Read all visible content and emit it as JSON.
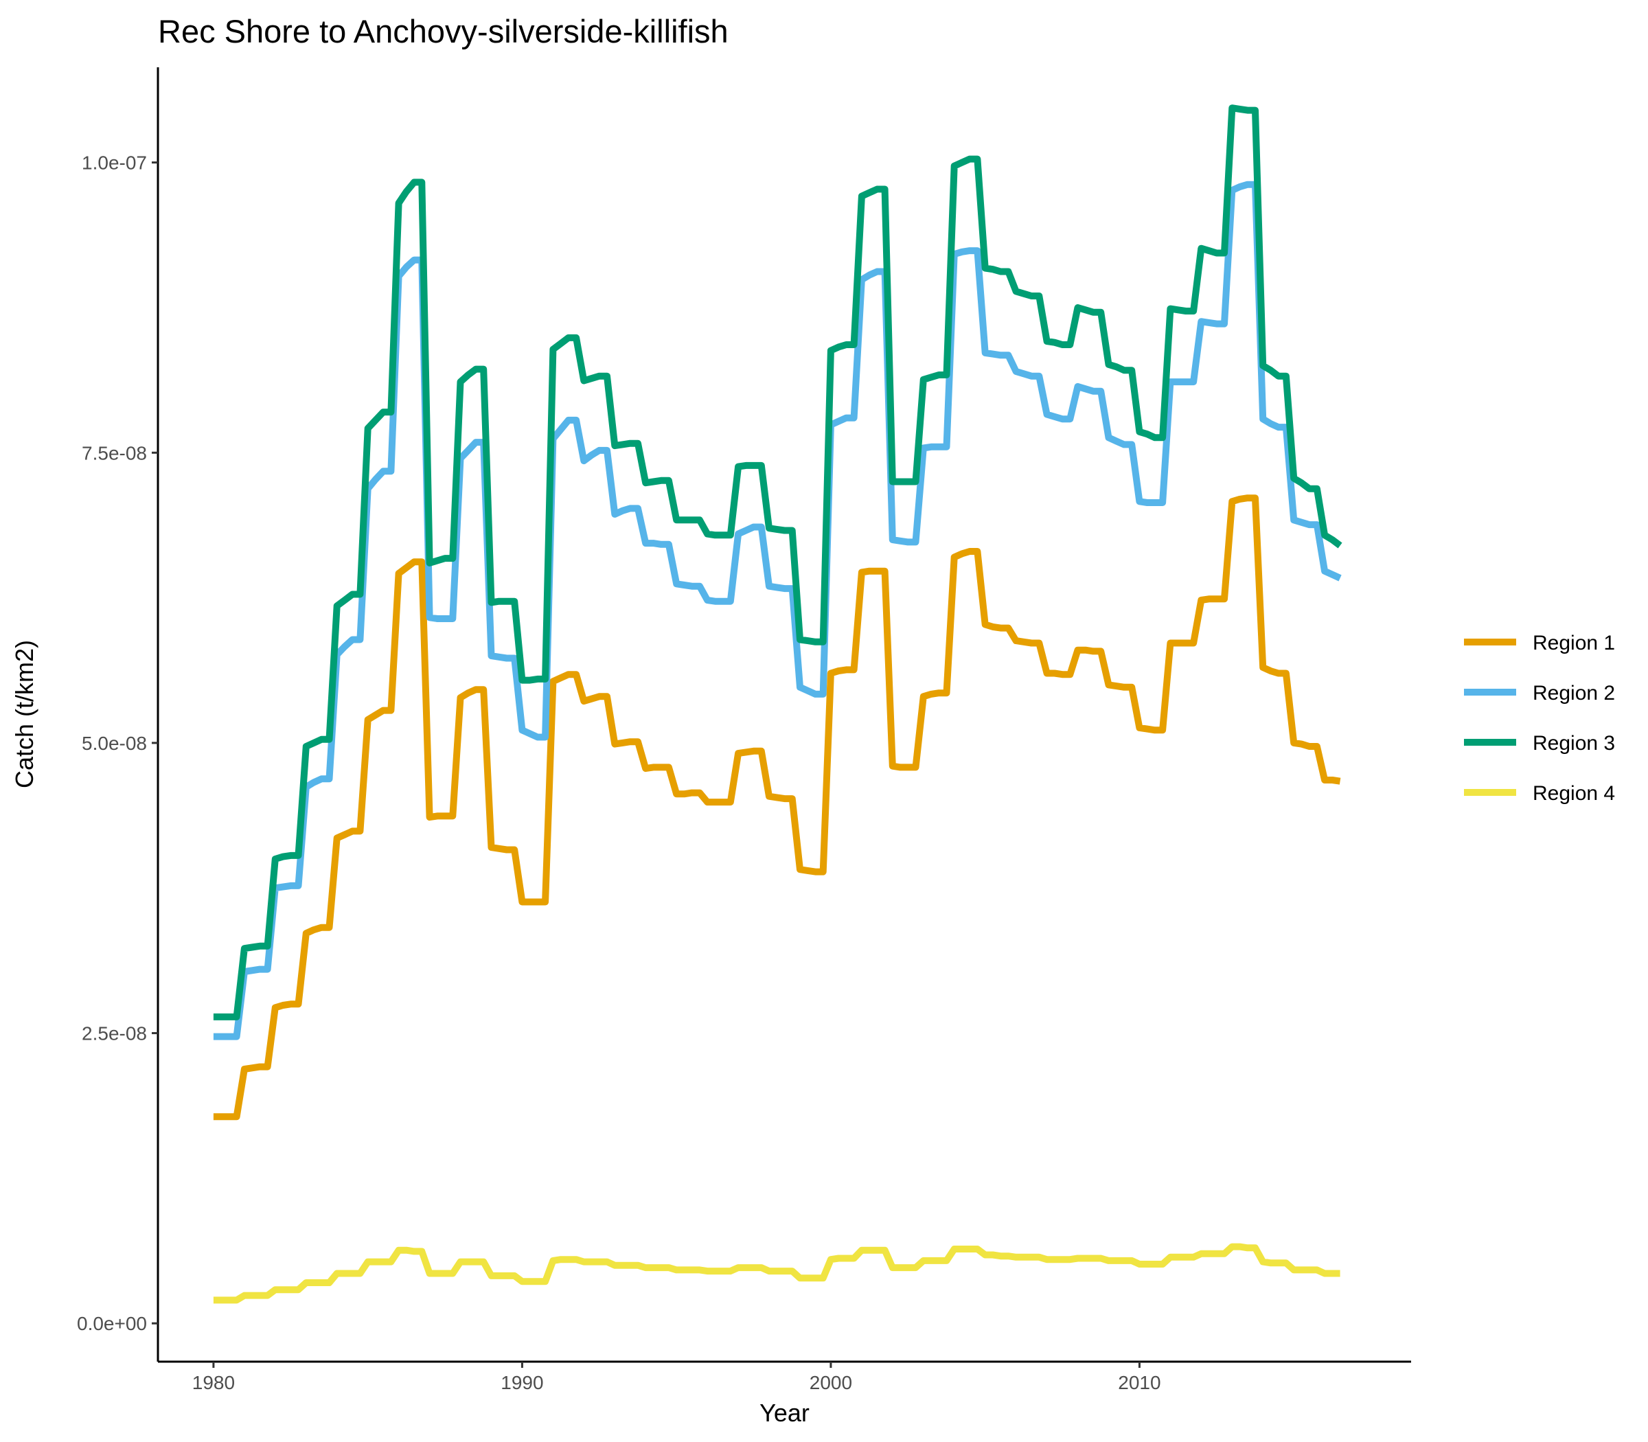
{
  "chart_data": {
    "type": "line",
    "title": "Rec Shore to Anchovy-silverside-killifish",
    "xlabel": "Year",
    "ylabel": "Catch (t/km2)",
    "xlim": [
      1978.2,
      2018.8
    ],
    "ylim": [
      -3.3e-09,
      1.082e-07
    ],
    "x_ticks": [
      1980,
      1990,
      2000,
      2010
    ],
    "x_tick_labels": [
      "1980",
      "1990",
      "2000",
      "2010"
    ],
    "y_ticks": [
      0,
      2.5e-08,
      5e-08,
      7.5e-08,
      1e-07
    ],
    "y_tick_labels": [
      "0.0e+00",
      "2.5e-08",
      "5.0e-08",
      "7.5e-08",
      "1.0e-07"
    ],
    "grid": false,
    "legend_position": "right",
    "steps_per_year": 4,
    "x_start": 1980,
    "x_step": 0.25,
    "series": [
      {
        "name": "Region 1",
        "color": "#E69F00",
        "values": [
          1.78e-08,
          1.78e-08,
          1.78e-08,
          1.78e-08,
          2.19e-08,
          2.2e-08,
          2.21e-08,
          2.21e-08,
          2.72e-08,
          2.74e-08,
          2.75e-08,
          2.75e-08,
          3.36e-08,
          3.39e-08,
          3.41e-08,
          3.41e-08,
          4.18e-08,
          4.21e-08,
          4.24e-08,
          4.24e-08,
          5.2e-08,
          5.24e-08,
          5.28e-08,
          5.28e-08,
          6.46e-08,
          6.51e-08,
          6.56e-08,
          6.56e-08,
          4.36e-08,
          4.37e-08,
          4.37e-08,
          4.37e-08,
          5.39e-08,
          5.43e-08,
          5.46e-08,
          5.46e-08,
          4.1e-08,
          4.09e-08,
          4.08e-08,
          4.08e-08,
          3.63e-08,
          3.63e-08,
          3.63e-08,
          3.63e-08,
          5.53e-08,
          5.56e-08,
          5.59e-08,
          5.59e-08,
          5.36e-08,
          5.38e-08,
          5.4e-08,
          5.4e-08,
          4.99e-08,
          5e-08,
          5.01e-08,
          5.01e-08,
          4.78e-08,
          4.79e-08,
          4.79e-08,
          4.79e-08,
          4.56e-08,
          4.56e-08,
          4.57e-08,
          4.57e-08,
          4.49e-08,
          4.49e-08,
          4.49e-08,
          4.49e-08,
          4.91e-08,
          4.92e-08,
          4.93e-08,
          4.93e-08,
          4.54e-08,
          4.53e-08,
          4.52e-08,
          4.52e-08,
          3.91e-08,
          3.9e-08,
          3.89e-08,
          3.89e-08,
          5.6e-08,
          5.62e-08,
          5.63e-08,
          5.63e-08,
          6.47e-08,
          6.48e-08,
          6.48e-08,
          6.48e-08,
          4.8e-08,
          4.79e-08,
          4.79e-08,
          4.79e-08,
          5.4e-08,
          5.42e-08,
          5.43e-08,
          5.43e-08,
          6.6e-08,
          6.63e-08,
          6.65e-08,
          6.65e-08,
          6.02e-08,
          6e-08,
          5.99e-08,
          5.99e-08,
          5.88e-08,
          5.87e-08,
          5.86e-08,
          5.86e-08,
          5.6e-08,
          5.6e-08,
          5.59e-08,
          5.59e-08,
          5.8e-08,
          5.8e-08,
          5.79e-08,
          5.79e-08,
          5.5e-08,
          5.49e-08,
          5.48e-08,
          5.48e-08,
          5.13e-08,
          5.12e-08,
          5.11e-08,
          5.11e-08,
          5.86e-08,
          5.86e-08,
          5.86e-08,
          5.86e-08,
          6.23e-08,
          6.24e-08,
          6.24e-08,
          6.24e-08,
          7.08e-08,
          7.1e-08,
          7.11e-08,
          7.11e-08,
          5.65e-08,
          5.62e-08,
          5.6e-08,
          5.6e-08,
          5e-08,
          4.99e-08,
          4.97e-08,
          4.97e-08,
          4.68e-08,
          4.68e-08,
          4.67e-08
        ]
      },
      {
        "name": "Region 2",
        "color": "#56B4E9",
        "values": [
          2.47e-08,
          2.47e-08,
          2.47e-08,
          2.47e-08,
          3.03e-08,
          3.04e-08,
          3.05e-08,
          3.05e-08,
          3.75e-08,
          3.76e-08,
          3.77e-08,
          3.77e-08,
          4.62e-08,
          4.66e-08,
          4.69e-08,
          4.69e-08,
          5.76e-08,
          5.83e-08,
          5.89e-08,
          5.89e-08,
          7.19e-08,
          7.27e-08,
          7.34e-08,
          7.34e-08,
          9.02e-08,
          9.1e-08,
          9.16e-08,
          9.16e-08,
          6.08e-08,
          6.07e-08,
          6.07e-08,
          6.07e-08,
          7.45e-08,
          7.52e-08,
          7.59e-08,
          7.59e-08,
          5.75e-08,
          5.74e-08,
          5.73e-08,
          5.73e-08,
          5.11e-08,
          5.08e-08,
          5.05e-08,
          5.05e-08,
          7.62e-08,
          7.7e-08,
          7.78e-08,
          7.78e-08,
          7.43e-08,
          7.48e-08,
          7.52e-08,
          7.52e-08,
          6.97e-08,
          7e-08,
          7.02e-08,
          7.02e-08,
          6.72e-08,
          6.72e-08,
          6.71e-08,
          6.71e-08,
          6.37e-08,
          6.36e-08,
          6.35e-08,
          6.35e-08,
          6.23e-08,
          6.22e-08,
          6.22e-08,
          6.22e-08,
          6.8e-08,
          6.83e-08,
          6.86e-08,
          6.86e-08,
          6.35e-08,
          6.34e-08,
          6.33e-08,
          6.33e-08,
          5.48e-08,
          5.45e-08,
          5.42e-08,
          5.42e-08,
          7.74e-08,
          7.77e-08,
          7.8e-08,
          7.8e-08,
          8.99e-08,
          9.03e-08,
          9.06e-08,
          9.06e-08,
          6.75e-08,
          6.74e-08,
          6.73e-08,
          6.73e-08,
          7.54e-08,
          7.55e-08,
          7.55e-08,
          7.55e-08,
          9.21e-08,
          9.23e-08,
          9.24e-08,
          9.24e-08,
          8.36e-08,
          8.35e-08,
          8.34e-08,
          8.34e-08,
          8.2e-08,
          8.18e-08,
          8.16e-08,
          8.16e-08,
          7.83e-08,
          7.81e-08,
          7.79e-08,
          7.79e-08,
          8.07e-08,
          8.05e-08,
          8.03e-08,
          8.03e-08,
          7.63e-08,
          7.6e-08,
          7.57e-08,
          7.57e-08,
          7.08e-08,
          7.07e-08,
          7.07e-08,
          7.07e-08,
          8.11e-08,
          8.11e-08,
          8.11e-08,
          8.11e-08,
          8.63e-08,
          8.62e-08,
          8.61e-08,
          8.61e-08,
          9.76e-08,
          9.79e-08,
          9.81e-08,
          9.81e-08,
          7.79e-08,
          7.75e-08,
          7.72e-08,
          7.72e-08,
          6.92e-08,
          6.9e-08,
          6.88e-08,
          6.88e-08,
          6.48e-08,
          6.45e-08,
          6.42e-08
        ]
      },
      {
        "name": "Region 3",
        "color": "#009E73",
        "values": [
          2.64e-08,
          2.64e-08,
          2.64e-08,
          2.64e-08,
          3.23e-08,
          3.24e-08,
          3.25e-08,
          3.25e-08,
          4e-08,
          4.02e-08,
          4.03e-08,
          4.03e-08,
          4.97e-08,
          5e-08,
          5.03e-08,
          5.03e-08,
          6.18e-08,
          6.23e-08,
          6.28e-08,
          6.28e-08,
          7.71e-08,
          7.78e-08,
          7.85e-08,
          7.85e-08,
          9.65e-08,
          9.75e-08,
          9.83e-08,
          9.83e-08,
          6.55e-08,
          6.57e-08,
          6.59e-08,
          6.59e-08,
          8.11e-08,
          8.17e-08,
          8.22e-08,
          8.22e-08,
          6.21e-08,
          6.22e-08,
          6.22e-08,
          6.22e-08,
          5.54e-08,
          5.54e-08,
          5.55e-08,
          5.55e-08,
          8.39e-08,
          8.44e-08,
          8.49e-08,
          8.49e-08,
          8.12e-08,
          8.14e-08,
          8.16e-08,
          8.16e-08,
          7.56e-08,
          7.57e-08,
          7.58e-08,
          7.58e-08,
          7.24e-08,
          7.25e-08,
          7.26e-08,
          7.26e-08,
          6.92e-08,
          6.92e-08,
          6.92e-08,
          6.92e-08,
          6.8e-08,
          6.79e-08,
          6.79e-08,
          6.79e-08,
          7.38e-08,
          7.39e-08,
          7.39e-08,
          7.39e-08,
          6.85e-08,
          6.84e-08,
          6.83e-08,
          6.83e-08,
          5.89e-08,
          5.88e-08,
          5.87e-08,
          5.87e-08,
          8.38e-08,
          8.41e-08,
          8.43e-08,
          8.43e-08,
          9.71e-08,
          9.74e-08,
          9.77e-08,
          9.77e-08,
          7.25e-08,
          7.25e-08,
          7.25e-08,
          7.25e-08,
          8.13e-08,
          8.15e-08,
          8.17e-08,
          8.17e-08,
          9.97e-08,
          1e-07,
          1.003e-07,
          1.003e-07,
          9.09e-08,
          9.08e-08,
          9.06e-08,
          9.06e-08,
          8.89e-08,
          8.87e-08,
          8.85e-08,
          8.85e-08,
          8.46e-08,
          8.45e-08,
          8.43e-08,
          8.43e-08,
          8.75e-08,
          8.73e-08,
          8.71e-08,
          8.71e-08,
          8.26e-08,
          8.24e-08,
          8.21e-08,
          8.21e-08,
          7.68e-08,
          7.66e-08,
          7.63e-08,
          7.63e-08,
          8.74e-08,
          8.73e-08,
          8.72e-08,
          8.72e-08,
          9.26e-08,
          9.24e-08,
          9.22e-08,
          9.22e-08,
          1.047e-07,
          1.046e-07,
          1.045e-07,
          1.045e-07,
          8.25e-08,
          8.21e-08,
          8.16e-08,
          8.16e-08,
          7.28e-08,
          7.24e-08,
          7.19e-08,
          7.19e-08,
          6.79e-08,
          6.75e-08,
          6.7e-08
        ]
      },
      {
        "name": "Region 4",
        "color": "#F0E442",
        "values": [
          2e-09,
          2e-09,
          2e-09,
          2e-09,
          2.4e-09,
          2.4e-09,
          2.4e-09,
          2.4e-09,
          2.9e-09,
          2.9e-09,
          2.9e-09,
          2.9e-09,
          3.5e-09,
          3.5e-09,
          3.5e-09,
          3.5e-09,
          4.3e-09,
          4.3e-09,
          4.3e-09,
          4.3e-09,
          5.3e-09,
          5.3e-09,
          5.3e-09,
          5.3e-09,
          6.3e-09,
          6.3e-09,
          6.2e-09,
          6.2e-09,
          4.3e-09,
          4.3e-09,
          4.3e-09,
          4.3e-09,
          5.3e-09,
          5.3e-09,
          5.3e-09,
          5.3e-09,
          4.1e-09,
          4.1e-09,
          4.1e-09,
          4.1e-09,
          3.6e-09,
          3.6e-09,
          3.6e-09,
          3.6e-09,
          5.4e-09,
          5.5e-09,
          5.5e-09,
          5.5e-09,
          5.3e-09,
          5.3e-09,
          5.3e-09,
          5.3e-09,
          5e-09,
          5e-09,
          5e-09,
          5e-09,
          4.8e-09,
          4.8e-09,
          4.8e-09,
          4.8e-09,
          4.6e-09,
          4.6e-09,
          4.6e-09,
          4.6e-09,
          4.5e-09,
          4.5e-09,
          4.5e-09,
          4.5e-09,
          4.8e-09,
          4.8e-09,
          4.8e-09,
          4.8e-09,
          4.5e-09,
          4.5e-09,
          4.5e-09,
          4.5e-09,
          3.9e-09,
          3.9e-09,
          3.9e-09,
          3.9e-09,
          5.5e-09,
          5.6e-09,
          5.6e-09,
          5.6e-09,
          6.3e-09,
          6.3e-09,
          6.3e-09,
          6.3e-09,
          4.8e-09,
          4.8e-09,
          4.8e-09,
          4.8e-09,
          5.4e-09,
          5.4e-09,
          5.4e-09,
          5.4e-09,
          6.4e-09,
          6.4e-09,
          6.4e-09,
          6.4e-09,
          5.9e-09,
          5.9e-09,
          5.8e-09,
          5.8e-09,
          5.7e-09,
          5.7e-09,
          5.7e-09,
          5.7e-09,
          5.5e-09,
          5.5e-09,
          5.5e-09,
          5.5e-09,
          5.6e-09,
          5.6e-09,
          5.6e-09,
          5.6e-09,
          5.4e-09,
          5.4e-09,
          5.4e-09,
          5.4e-09,
          5.1e-09,
          5.1e-09,
          5.1e-09,
          5.1e-09,
          5.7e-09,
          5.7e-09,
          5.7e-09,
          5.7e-09,
          6e-09,
          6e-09,
          6e-09,
          6e-09,
          6.6e-09,
          6.6e-09,
          6.5e-09,
          6.5e-09,
          5.3e-09,
          5.2e-09,
          5.2e-09,
          5.2e-09,
          4.6e-09,
          4.6e-09,
          4.6e-09,
          4.6e-09,
          4.3e-09,
          4.3e-09,
          4.3e-09
        ]
      }
    ]
  }
}
